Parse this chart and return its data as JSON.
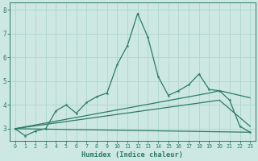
{
  "xlabel": "Humidex (Indice chaleur)",
  "x": [
    0,
    1,
    2,
    3,
    4,
    5,
    6,
    7,
    8,
    9,
    10,
    11,
    12,
    13,
    14,
    15,
    16,
    17,
    18,
    19,
    20,
    21,
    22,
    23
  ],
  "line_main": [
    3.0,
    2.7,
    2.9,
    3.0,
    3.75,
    4.0,
    3.65,
    4.1,
    4.35,
    4.5,
    5.7,
    6.5,
    7.85,
    6.85,
    5.2,
    4.4,
    4.6,
    4.85,
    5.3,
    4.65,
    4.6,
    4.2,
    3.1,
    2.85
  ],
  "line_flat": [
    [
      0,
      23
    ],
    [
      3.0,
      2.85
    ]
  ],
  "line_rise1": [
    [
      0,
      20,
      23
    ],
    [
      3.0,
      4.2,
      3.1
    ]
  ],
  "line_rise2": [
    [
      0,
      19,
      20,
      23
    ],
    [
      3.0,
      4.5,
      4.6,
      4.3
    ]
  ],
  "ylim": [
    2.5,
    8.3
  ],
  "xlim": [
    -0.5,
    23.5
  ],
  "yticks": [
    3,
    4,
    5,
    6,
    7,
    8
  ],
  "xticks": [
    0,
    1,
    2,
    3,
    4,
    5,
    6,
    7,
    8,
    9,
    10,
    11,
    12,
    13,
    14,
    15,
    16,
    17,
    18,
    19,
    20,
    21,
    22,
    23
  ],
  "line_color": "#2a7a68",
  "bg_color": "#cde8e3",
  "grid_color": "#afd4ce"
}
